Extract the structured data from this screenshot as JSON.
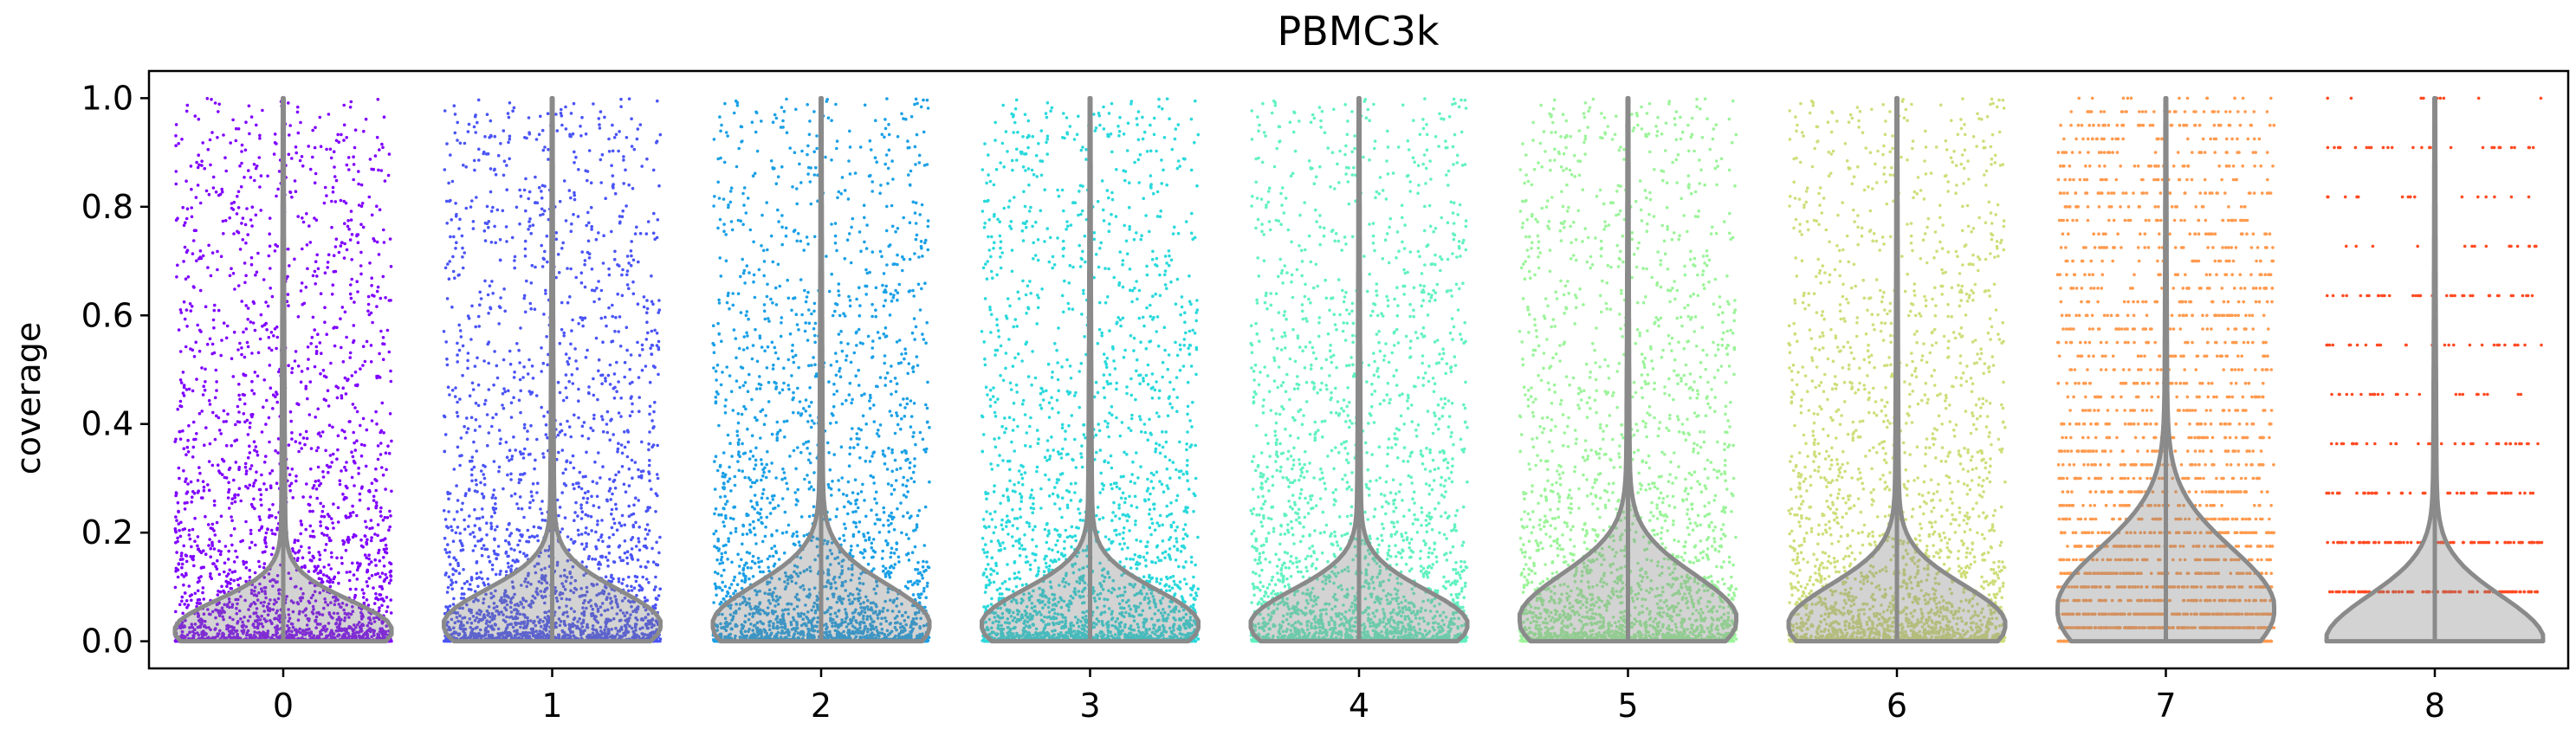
{
  "chart_data": {
    "type": "violin",
    "title": "PBMC3k",
    "xlabel": "",
    "ylabel": "coverage",
    "categories": [
      "0",
      "1",
      "2",
      "3",
      "4",
      "5",
      "6",
      "7",
      "8"
    ],
    "y_ticks": [
      "0.0",
      "0.2",
      "0.4",
      "0.6",
      "0.8",
      "1.0"
    ],
    "ylim": [
      -0.05,
      1.05
    ],
    "grid": false,
    "legend": "none",
    "overlay": "jittered points (strip)",
    "colors": [
      "#7f00ff",
      "#4a54f5",
      "#1aa0e6",
      "#2ad9dc",
      "#62f2c0",
      "#9cf49a",
      "#cfde7a",
      "#ff9a4e",
      "#ff4b23"
    ],
    "series": [
      {
        "category": "0",
        "median": 0.02,
        "q1": 0.0,
        "q3": 0.06,
        "max": 1.0,
        "min": 0.0
      },
      {
        "category": "1",
        "median": 0.03,
        "q1": 0.01,
        "q3": 0.08,
        "max": 1.0,
        "min": 0.0
      },
      {
        "category": "2",
        "median": 0.03,
        "q1": 0.01,
        "q3": 0.09,
        "max": 1.0,
        "min": 0.0
      },
      {
        "category": "3",
        "median": 0.03,
        "q1": 0.01,
        "q3": 0.08,
        "max": 1.0,
        "min": 0.0
      },
      {
        "category": "4",
        "median": 0.03,
        "q1": 0.01,
        "q3": 0.08,
        "max": 1.0,
        "min": 0.0
      },
      {
        "category": "5",
        "median": 0.04,
        "q1": 0.01,
        "q3": 0.1,
        "max": 1.0,
        "min": 0.0
      },
      {
        "category": "6",
        "median": 0.03,
        "q1": 0.01,
        "q3": 0.09,
        "max": 1.0,
        "min": 0.0
      },
      {
        "category": "7",
        "median": 0.06,
        "q1": 0.02,
        "q3": 0.14,
        "max": 1.0,
        "min": 0.0
      },
      {
        "category": "8",
        "median": 0.0,
        "q1": 0.0,
        "q3": 0.09,
        "max": 1.0,
        "min": 0.0
      }
    ]
  }
}
